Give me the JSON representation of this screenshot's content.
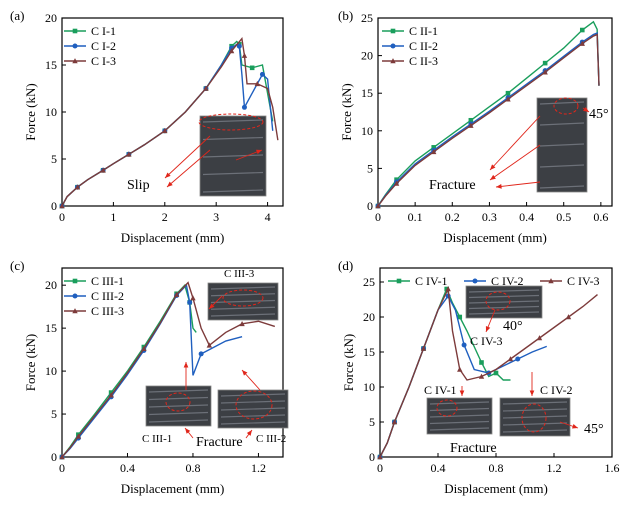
{
  "figure": {
    "style": {
      "line_colors": [
        "#1a9e5c",
        "#1f5fbf",
        "#7d3b3b"
      ],
      "annotation_color": "#e0261b"
    }
  },
  "chart_data": [
    {
      "type": "line",
      "panel_label": "(a)",
      "xlabel": "Displacement (mm)",
      "ylabel": "Force (kN)",
      "xlim": [
        0,
        4.3
      ],
      "ylim": [
        0,
        20
      ],
      "xticks": [
        0,
        1,
        2,
        3,
        4
      ],
      "xtick_labels": [
        "0",
        "1",
        "2",
        "3",
        "4"
      ],
      "yticks": [
        0,
        5,
        10,
        15,
        20
      ],
      "ytick_labels": [
        "0",
        "5",
        "10",
        "15",
        "20"
      ],
      "legend_position": "top-left",
      "annotations": [
        "Slip"
      ],
      "series": [
        {
          "name": "C I-1",
          "x": [
            0,
            0.1,
            0.3,
            0.5,
            0.8,
            1.0,
            1.3,
            1.6,
            2.0,
            2.4,
            2.8,
            3.1,
            3.3,
            3.4,
            3.45,
            3.5,
            3.7,
            3.9,
            4.0,
            4.1
          ],
          "y": [
            0,
            1.0,
            2.0,
            2.8,
            3.8,
            4.5,
            5.5,
            6.5,
            8.0,
            10.0,
            12.5,
            15.0,
            17.0,
            17.5,
            17.2,
            15.0,
            14.7,
            15.0,
            12.0,
            9.0
          ]
        },
        {
          "name": "C I-2",
          "x": [
            0,
            0.1,
            0.3,
            0.5,
            0.8,
            1.0,
            1.3,
            1.6,
            2.0,
            2.4,
            2.8,
            3.1,
            3.3,
            3.4,
            3.45,
            3.5,
            3.55,
            3.7,
            3.9,
            4.0,
            4.1
          ],
          "y": [
            0,
            1.0,
            2.0,
            2.8,
            3.8,
            4.5,
            5.5,
            6.5,
            8.0,
            10.0,
            12.5,
            15.0,
            16.8,
            17.2,
            17.0,
            14.0,
            10.5,
            12.0,
            14.0,
            13.5,
            8.0
          ]
        },
        {
          "name": "C I-3",
          "x": [
            0,
            0.1,
            0.3,
            0.5,
            0.8,
            1.0,
            1.3,
            1.6,
            2.0,
            2.4,
            2.8,
            3.1,
            3.3,
            3.5,
            3.55,
            3.6,
            3.8,
            4.0,
            4.1,
            4.2
          ],
          "y": [
            0,
            1.0,
            2.0,
            2.8,
            3.8,
            4.5,
            5.5,
            6.5,
            8.0,
            10.0,
            12.5,
            14.8,
            16.5,
            17.8,
            16.0,
            13.0,
            13.0,
            12.5,
            10.5,
            7.0
          ]
        }
      ]
    },
    {
      "type": "line",
      "panel_label": "(b)",
      "xlabel": "Displacement (mm)",
      "ylabel": "Force (kN)",
      "xlim": [
        0,
        0.63
      ],
      "ylim": [
        0,
        25
      ],
      "xticks": [
        0,
        0.1,
        0.2,
        0.3,
        0.4,
        0.5,
        0.6
      ],
      "xtick_labels": [
        "0",
        "0.1",
        "0.2",
        "0.3",
        "0.4",
        "0.5",
        "0.6"
      ],
      "yticks": [
        0,
        5,
        10,
        15,
        20,
        25
      ],
      "ytick_labels": [
        "0",
        "5",
        "10",
        "15",
        "20",
        "25"
      ],
      "legend_position": "top-left",
      "annotations": [
        "Fracture",
        "45°"
      ],
      "series": [
        {
          "name": "C II-1",
          "x": [
            0,
            0.02,
            0.05,
            0.1,
            0.15,
            0.2,
            0.25,
            0.3,
            0.35,
            0.4,
            0.45,
            0.5,
            0.55,
            0.58,
            0.59,
            0.595
          ],
          "y": [
            0,
            1.5,
            3.5,
            6.0,
            7.8,
            9.6,
            11.4,
            13.2,
            15.0,
            17.0,
            19.0,
            21.0,
            23.4,
            24.5,
            23.5,
            16.0
          ]
        },
        {
          "name": "C II-2",
          "x": [
            0,
            0.02,
            0.05,
            0.1,
            0.15,
            0.2,
            0.25,
            0.3,
            0.35,
            0.4,
            0.45,
            0.5,
            0.55,
            0.58,
            0.59,
            0.595
          ],
          "y": [
            0,
            1.4,
            3.2,
            5.6,
            7.4,
            9.2,
            10.9,
            12.6,
            14.4,
            16.2,
            18.0,
            19.9,
            21.8,
            22.8,
            23.0,
            16.0
          ]
        },
        {
          "name": "C II-3",
          "x": [
            0,
            0.02,
            0.05,
            0.1,
            0.15,
            0.2,
            0.25,
            0.3,
            0.35,
            0.4,
            0.45,
            0.5,
            0.55,
            0.58,
            0.59,
            0.595
          ],
          "y": [
            0,
            1.3,
            3.0,
            5.4,
            7.2,
            9.0,
            10.7,
            12.4,
            14.2,
            16.0,
            17.8,
            19.7,
            21.6,
            22.6,
            22.8,
            16.0
          ]
        }
      ]
    },
    {
      "type": "line",
      "panel_label": "(c)",
      "xlabel": "Displacement (mm)",
      "ylabel": "Force (kN)",
      "xlim": [
        0,
        1.35
      ],
      "ylim": [
        0,
        22
      ],
      "xticks": [
        0,
        0.4,
        0.8,
        1.2
      ],
      "xtick_labels": [
        "0",
        "0.4",
        "0.8",
        "1.2"
      ],
      "yticks": [
        0,
        5,
        10,
        15,
        20
      ],
      "ytick_labels": [
        "0",
        "5",
        "10",
        "15",
        "20"
      ],
      "legend_position": "top-left",
      "annotations": [
        "C III-3",
        "C III-1",
        "C III-2",
        "Fracture"
      ],
      "series": [
        {
          "name": "C III-1",
          "x": [
            0,
            0.05,
            0.1,
            0.2,
            0.3,
            0.4,
            0.5,
            0.6,
            0.7,
            0.75,
            0.78,
            0.8,
            0.82
          ],
          "y": [
            0,
            1.2,
            2.6,
            5.0,
            7.5,
            10.0,
            12.8,
            15.8,
            19.0,
            20.0,
            18.0,
            15.0,
            14.5
          ]
        },
        {
          "name": "C III-2",
          "x": [
            0,
            0.05,
            0.1,
            0.2,
            0.3,
            0.4,
            0.5,
            0.6,
            0.7,
            0.76,
            0.78,
            0.8,
            0.85,
            0.9,
            1.0,
            1.1
          ],
          "y": [
            0,
            1.0,
            2.2,
            4.6,
            7.0,
            9.6,
            12.4,
            15.5,
            18.8,
            20.0,
            18.0,
            9.5,
            12.0,
            12.5,
            13.5,
            14.0
          ]
        },
        {
          "name": "C III-3",
          "x": [
            0,
            0.05,
            0.1,
            0.2,
            0.3,
            0.4,
            0.5,
            0.6,
            0.7,
            0.77,
            0.8,
            0.85,
            0.9,
            1.0,
            1.1,
            1.2,
            1.3
          ],
          "y": [
            0,
            1.1,
            2.4,
            4.8,
            7.2,
            9.8,
            12.6,
            15.6,
            18.9,
            20.3,
            18.5,
            15.0,
            13.0,
            14.5,
            15.5,
            15.8,
            15.2
          ]
        }
      ]
    },
    {
      "type": "line",
      "panel_label": "(d)",
      "xlabel": "Displacement (mm)",
      "ylabel": "Force (kN)",
      "xlim": [
        0,
        1.6
      ],
      "ylim": [
        0,
        27
      ],
      "xticks": [
        0,
        0.4,
        0.8,
        1.2,
        1.6
      ],
      "xtick_labels": [
        "0",
        "0.4",
        "0.8",
        "1.2",
        "1.6"
      ],
      "yticks": [
        0,
        5,
        10,
        15,
        20,
        25
      ],
      "ytick_labels": [
        "0",
        "5",
        "10",
        "15",
        "20",
        "25"
      ],
      "legend_position": "top",
      "annotations": [
        "40°",
        "C IV-3",
        "C IV-1",
        "C IV-2",
        "Fracture",
        "45°"
      ],
      "series": [
        {
          "name": "C IV-1",
          "x": [
            0,
            0.05,
            0.1,
            0.2,
            0.3,
            0.4,
            0.46,
            0.5,
            0.55,
            0.6,
            0.7,
            0.75,
            0.8,
            0.85,
            0.9
          ],
          "y": [
            0,
            2.0,
            5.0,
            10.0,
            15.5,
            21.0,
            24.0,
            22.0,
            20.0,
            18.0,
            13.5,
            11.5,
            12.0,
            11.0,
            11.0
          ]
        },
        {
          "name": "C IV-2",
          "x": [
            0,
            0.05,
            0.1,
            0.2,
            0.3,
            0.4,
            0.47,
            0.52,
            0.58,
            0.65,
            0.75,
            0.85,
            0.95,
            1.05,
            1.15
          ],
          "y": [
            0,
            2.0,
            5.0,
            10.0,
            15.5,
            21.0,
            23.0,
            21.0,
            16.0,
            12.5,
            12.0,
            13.0,
            14.0,
            15.0,
            15.8
          ]
        },
        {
          "name": "C IV-3",
          "x": [
            0,
            0.05,
            0.1,
            0.2,
            0.3,
            0.4,
            0.47,
            0.5,
            0.55,
            0.6,
            0.7,
            0.8,
            0.9,
            1.0,
            1.1,
            1.2,
            1.3,
            1.4,
            1.5
          ],
          "y": [
            0,
            2.0,
            5.0,
            10.0,
            15.5,
            21.0,
            24.0,
            18.0,
            12.5,
            11.0,
            11.5,
            12.5,
            14.0,
            15.5,
            17.0,
            18.5,
            20.0,
            21.5,
            23.2
          ]
        }
      ]
    }
  ]
}
